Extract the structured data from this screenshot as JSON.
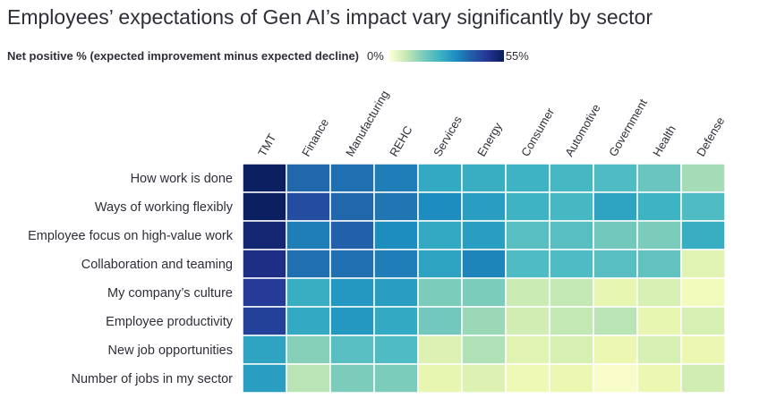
{
  "title": "Employees’ expectations of Gen AI’s impact vary significantly by sector",
  "legend": {
    "label": "Net positive % (expected improvement minus expected decline)",
    "min_label": "0%",
    "max_label": "55%",
    "range": [
      0,
      55
    ]
  },
  "chart_data": {
    "type": "heatmap",
    "title": "Employees’ expectations of Gen AI’s impact vary significantly by sector",
    "columns": [
      "TMT",
      "Finance",
      "Manufacturing",
      "REHC",
      "Services",
      "Energy",
      "Consumer",
      "Automotive",
      "Government",
      "Health",
      "Defense"
    ],
    "rows": [
      "How work is done",
      "Ways of working flexibly",
      "Employee focus on high-value work",
      "Collaboration and teaming",
      "My company’s culture",
      "Employee productivity",
      "New job opportunities",
      "Number of jobs in my sector"
    ],
    "values": [
      [
        54,
        40,
        39,
        37,
        30,
        29,
        28,
        27,
        26,
        23,
        17
      ],
      [
        54,
        44,
        40,
        38,
        35,
        32,
        28,
        27,
        31,
        28,
        26
      ],
      [
        52,
        37,
        41,
        35,
        30,
        32,
        25,
        25,
        22,
        21,
        29
      ],
      [
        50,
        39,
        39,
        37,
        31,
        36,
        26,
        26,
        25,
        24,
        9
      ],
      [
        47,
        29,
        33,
        32,
        21,
        21,
        13,
        14,
        8,
        11,
        5
      ],
      [
        46,
        30,
        33,
        30,
        22,
        18,
        12,
        14,
        15,
        8,
        11
      ],
      [
        31,
        20,
        25,
        26,
        10,
        16,
        9,
        11,
        7,
        11,
        7
      ],
      [
        32,
        15,
        21,
        21,
        8,
        10,
        6,
        7,
        3,
        7,
        12
      ]
    ],
    "value_range": [
      0,
      55
    ]
  },
  "colors": {
    "scale": [
      "#ffffd9",
      "#edf8b1",
      "#c7e9b4",
      "#7fcdbb",
      "#41b6c4",
      "#1d91c0",
      "#225ea8",
      "#253494",
      "#081d58"
    ],
    "text": "#2e2e38",
    "cell_border": "#ffffff"
  }
}
